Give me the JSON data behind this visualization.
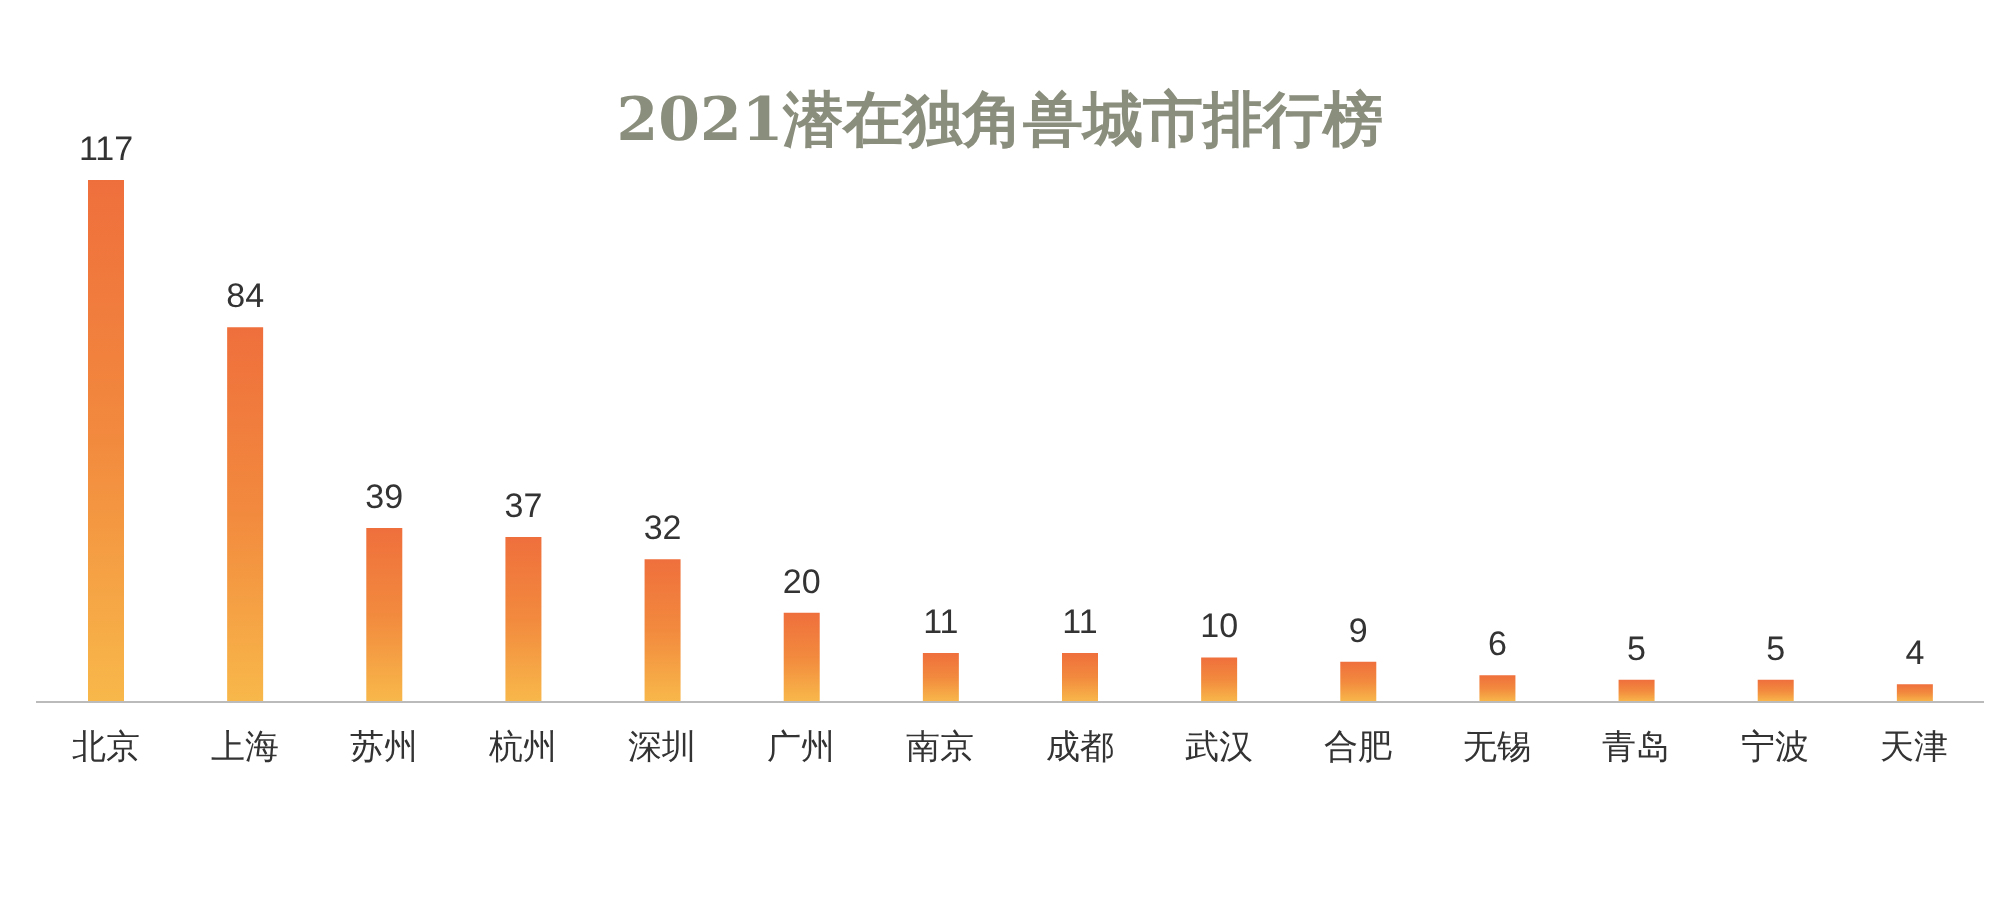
{
  "chart_data": {
    "type": "bar",
    "title": "2021潜在独角兽城市排行榜",
    "categories": [
      "北京",
      "上海",
      "苏州",
      "杭州",
      "深圳",
      "广州",
      "南京",
      "成都",
      "武汉",
      "合肥",
      "无锡",
      "青岛",
      "宁波",
      "天津"
    ],
    "values": [
      117,
      84,
      39,
      37,
      32,
      20,
      11,
      11,
      10,
      9,
      6,
      5,
      5,
      4
    ],
    "color": "#f28a3e",
    "data_labels": true,
    "grid": false,
    "legend": false
  }
}
